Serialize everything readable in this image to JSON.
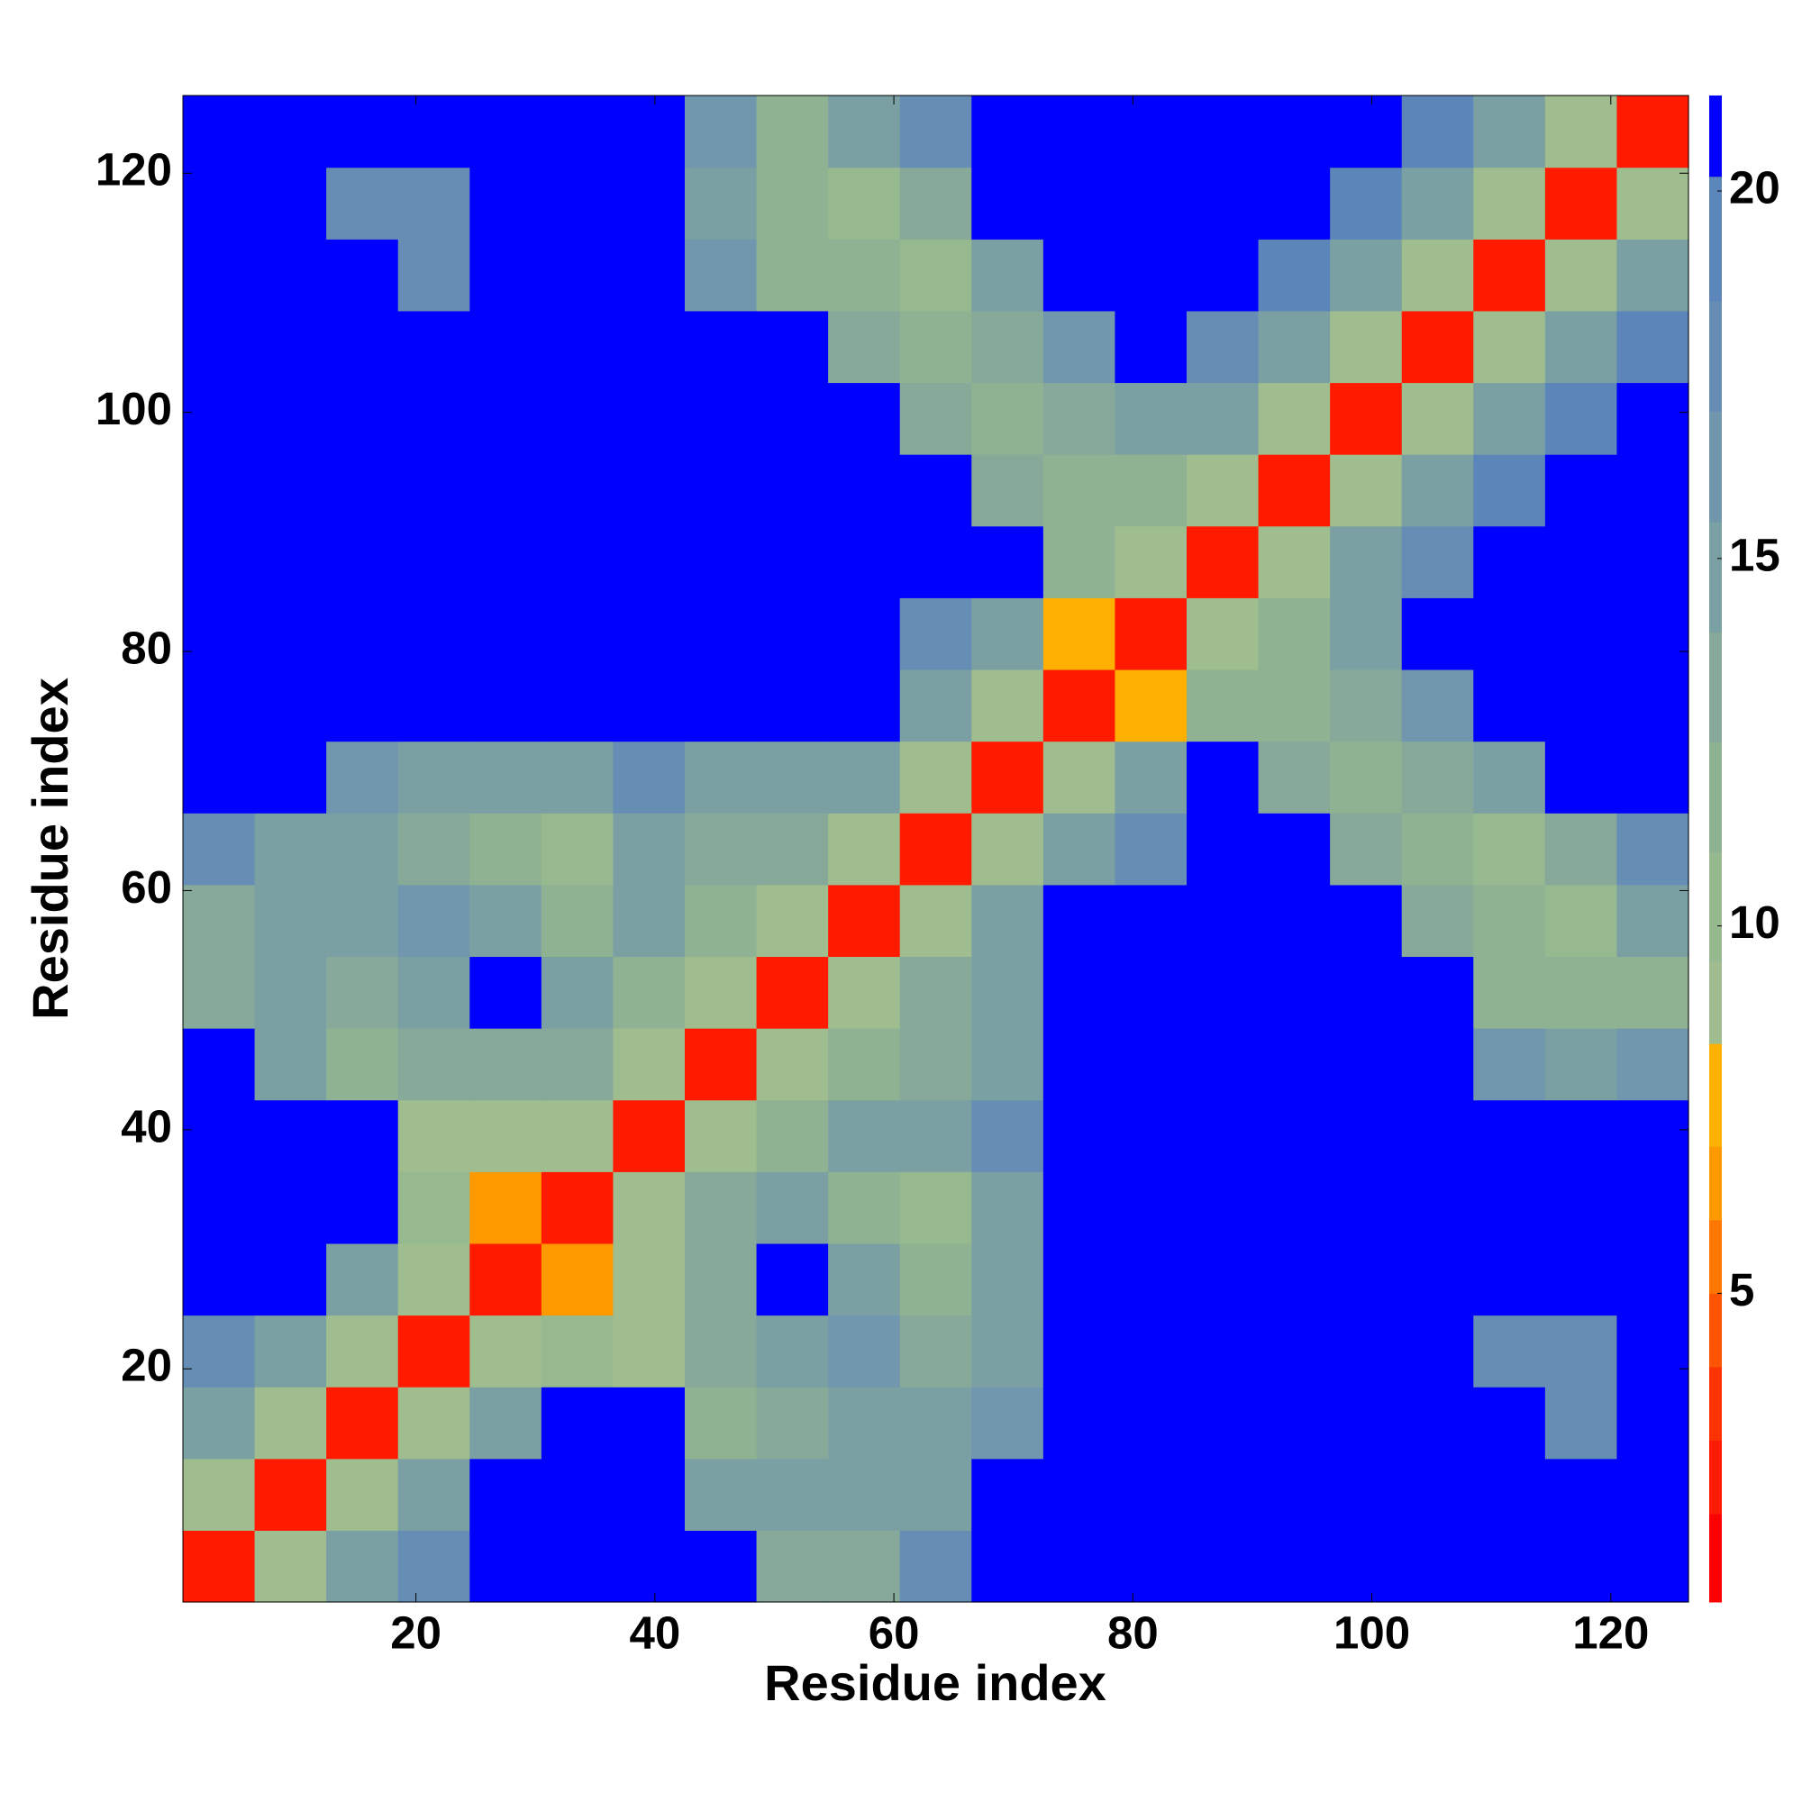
{
  "chart_data": {
    "type": "heatmap",
    "xlabel": "Residue index",
    "ylabel": "Residue index",
    "x_edges": [
      0.5,
      6.5,
      12.5,
      18.5,
      24.5,
      30.5,
      36.5,
      42.5,
      48.5,
      54.5,
      60.5,
      66.5,
      72.5,
      78.5,
      84.5,
      90.5,
      96.5,
      102.5,
      108.5,
      114.5,
      120.5,
      126.5
    ],
    "y_edges": [
      0.5,
      6.5,
      12.5,
      18.5,
      24.5,
      30.5,
      36.5,
      42.5,
      48.5,
      54.5,
      60.5,
      66.5,
      72.5,
      78.5,
      84.5,
      90.5,
      96.5,
      102.5,
      108.5,
      114.5,
      120.5,
      126.5
    ],
    "z": [
      [
        2,
        9,
        15,
        17,
        21,
        21,
        21,
        21,
        13,
        13,
        17,
        21,
        21,
        21,
        21,
        21,
        21,
        21,
        21,
        21,
        21
      ],
      [
        9,
        2,
        9,
        15,
        21,
        21,
        21,
        15,
        15,
        15,
        15,
        21,
        21,
        21,
        21,
        21,
        21,
        21,
        21,
        21,
        21
      ],
      [
        15,
        9,
        2,
        9,
        14,
        21,
        21,
        12,
        13,
        14,
        14,
        16,
        21,
        21,
        21,
        21,
        21,
        21,
        21,
        18,
        21
      ],
      [
        17,
        15,
        9,
        2,
        9,
        10,
        9,
        13,
        15,
        16,
        13,
        15,
        21,
        21,
        21,
        21,
        21,
        21,
        18,
        18,
        21
      ],
      [
        21,
        21,
        14,
        9,
        2,
        6,
        9,
        13,
        21,
        15,
        12,
        15,
        21,
        21,
        21,
        21,
        21,
        21,
        21,
        21,
        21
      ],
      [
        21,
        21,
        21,
        10,
        6,
        2,
        9,
        13,
        14,
        11,
        10,
        14,
        21,
        21,
        21,
        21,
        21,
        21,
        21,
        21,
        21
      ],
      [
        21,
        21,
        21,
        9,
        9,
        9,
        2,
        9,
        12,
        14,
        14,
        17,
        21,
        21,
        21,
        21,
        21,
        21,
        21,
        21,
        21
      ],
      [
        21,
        15,
        12,
        13,
        13,
        13,
        9,
        2,
        9,
        12,
        13,
        15,
        21,
        21,
        21,
        21,
        21,
        21,
        16,
        15,
        16
      ],
      [
        13,
        15,
        13,
        15,
        21,
        14,
        12,
        9,
        2,
        9,
        13,
        15,
        21,
        21,
        21,
        21,
        21,
        21,
        12,
        11,
        12
      ],
      [
        13,
        15,
        14,
        16,
        15,
        11,
        14,
        12,
        9,
        2,
        9,
        14,
        21,
        21,
        21,
        21,
        21,
        13,
        12,
        10,
        14
      ],
      [
        17,
        15,
        14,
        13,
        12,
        10,
        14,
        13,
        13,
        9,
        2,
        9,
        14,
        18,
        21,
        21,
        13,
        11,
        10,
        13,
        17
      ],
      [
        21,
        21,
        16,
        15,
        15,
        14,
        17,
        15,
        15,
        14,
        9,
        2,
        9,
        14,
        21,
        13,
        12,
        13,
        15,
        21,
        21
      ],
      [
        21,
        21,
        21,
        21,
        21,
        21,
        21,
        21,
        21,
        21,
        14,
        9,
        2,
        7,
        12,
        12,
        13,
        16,
        21,
        21,
        21
      ],
      [
        21,
        21,
        21,
        21,
        21,
        21,
        21,
        21,
        21,
        21,
        18,
        14,
        7,
        2,
        9,
        12,
        14,
        21,
        21,
        21,
        21
      ],
      [
        21,
        21,
        21,
        21,
        21,
        21,
        21,
        21,
        21,
        21,
        21,
        21,
        12,
        9,
        2,
        9,
        14,
        17,
        21,
        21,
        21
      ],
      [
        21,
        21,
        21,
        21,
        21,
        21,
        21,
        21,
        21,
        21,
        21,
        13,
        12,
        12,
        9,
        2,
        9,
        14,
        19,
        21,
        21
      ],
      [
        21,
        21,
        21,
        21,
        21,
        21,
        21,
        21,
        21,
        21,
        13,
        12,
        13,
        14,
        14,
        9,
        2,
        9,
        14,
        19,
        21
      ],
      [
        21,
        21,
        21,
        21,
        21,
        21,
        21,
        21,
        21,
        13,
        11,
        13,
        16,
        21,
        17,
        14,
        9,
        2,
        9,
        14,
        19
      ],
      [
        21,
        21,
        21,
        18,
        21,
        21,
        21,
        16,
        12,
        12,
        10,
        15,
        21,
        21,
        21,
        19,
        14,
        9,
        2,
        9,
        14
      ],
      [
        21,
        21,
        18,
        18,
        21,
        21,
        21,
        15,
        11,
        10,
        13,
        21,
        21,
        21,
        21,
        21,
        19,
        14,
        9,
        2,
        9
      ],
      [
        21,
        21,
        21,
        21,
        21,
        21,
        21,
        16,
        12,
        14,
        17,
        21,
        21,
        21,
        21,
        21,
        21,
        19,
        14,
        9,
        2
      ]
    ],
    "xlim": [
      0.5,
      126.5
    ],
    "ylim": [
      0.5,
      126.5
    ],
    "xticks": [
      20,
      40,
      60,
      80,
      100,
      120
    ],
    "yticks": [
      20,
      40,
      60,
      80,
      100,
      120
    ],
    "colorbar": {
      "lim": [
        0.8,
        21.3
      ],
      "ticks": [
        5,
        10,
        15,
        20
      ],
      "levels": [
        0.8,
        2,
        3,
        4,
        5,
        6,
        7,
        8.4,
        9.5,
        11,
        12.5,
        14,
        15.5,
        17,
        18.5,
        20.2,
        21.3
      ],
      "colors": [
        "#ff0000",
        "#ff1a00",
        "#ff3300",
        "#ff5500",
        "#ff7700",
        "#ff9900",
        "#ffb000",
        "#9fbd8e",
        "#97b98f",
        "#8fb293",
        "#86a99a",
        "#7ba0a3",
        "#7097ad",
        "#668eb4",
        "#5c86ba",
        "#0000ff"
      ]
    }
  }
}
